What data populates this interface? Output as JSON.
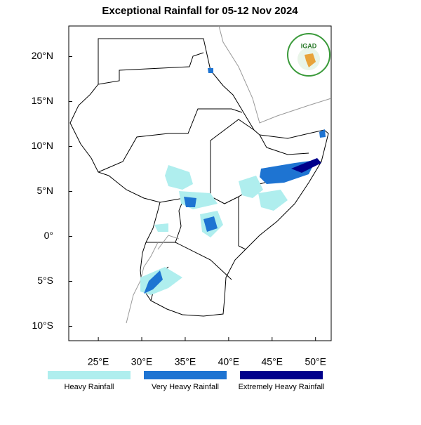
{
  "title": "Exceptional Rainfall for 05-12 Nov 2024",
  "logo": {
    "text": "IGAD"
  },
  "map": {
    "xlim": [
      21.6,
      51.8
    ],
    "ylim": [
      -11.6,
      23.4
    ],
    "xticks": [
      {
        "value": 25,
        "label": "25°E"
      },
      {
        "value": 30,
        "label": "30°E"
      },
      {
        "value": 35,
        "label": "35°E"
      },
      {
        "value": 40,
        "label": "40°E"
      },
      {
        "value": 45,
        "label": "45°E"
      },
      {
        "value": 50,
        "label": "50°E"
      }
    ],
    "yticks": [
      {
        "value": 20,
        "label": "20°N"
      },
      {
        "value": 15,
        "label": "15°N"
      },
      {
        "value": 10,
        "label": "10°N"
      },
      {
        "value": 5,
        "label": "5°N"
      },
      {
        "value": 0,
        "label": "0°"
      },
      {
        "value": -5,
        "label": "5°S"
      },
      {
        "value": -10,
        "label": "10°S"
      }
    ]
  },
  "legend": [
    {
      "name": "Heavy Rainfall",
      "color": "#afeeee"
    },
    {
      "name": "Very Heavy Rainfall",
      "color": "#1e74d2"
    },
    {
      "name": "Extremely Heavy Rainfall",
      "color": "#00008b"
    }
  ]
}
